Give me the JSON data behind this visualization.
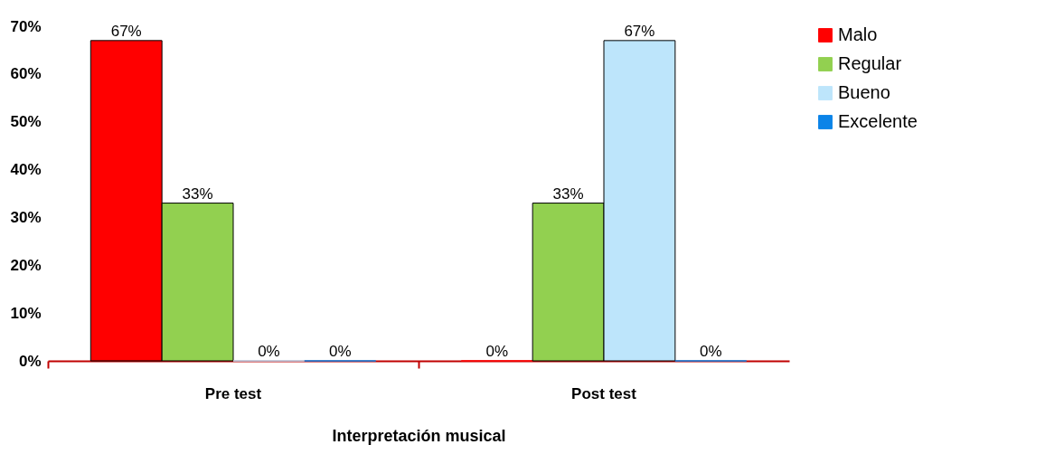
{
  "chart_data": {
    "type": "bar",
    "xlabel": "Interpretación musical",
    "categories": [
      "Pre test",
      "Post test"
    ],
    "series": [
      {
        "name": "Malo",
        "color": "#ff0000",
        "values": [
          67,
          0
        ],
        "value_labels": [
          "67%",
          "0%"
        ]
      },
      {
        "name": "Regular",
        "color": "#92d050",
        "values": [
          33,
          33
        ],
        "value_labels": [
          "33%",
          "33%"
        ]
      },
      {
        "name": "Bueno",
        "color": "#bde5fb",
        "values": [
          0,
          67
        ],
        "value_labels": [
          "0%",
          "67%"
        ]
      },
      {
        "name": "Excelente",
        "color": "#0b84e8",
        "values": [
          0,
          0
        ],
        "value_labels": [
          "0%",
          "0%"
        ]
      }
    ],
    "ylim": [
      0,
      70
    ],
    "yticks": [
      {
        "value": 0,
        "label": "0%"
      },
      {
        "value": 10,
        "label": "10%"
      },
      {
        "value": 20,
        "label": "20%"
      },
      {
        "value": 30,
        "label": "30%"
      },
      {
        "value": 40,
        "label": "40%"
      },
      {
        "value": 50,
        "label": "50%"
      },
      {
        "value": 60,
        "label": "60%"
      },
      {
        "value": 70,
        "label": "70%"
      }
    ],
    "grid": false,
    "legend": "right"
  }
}
